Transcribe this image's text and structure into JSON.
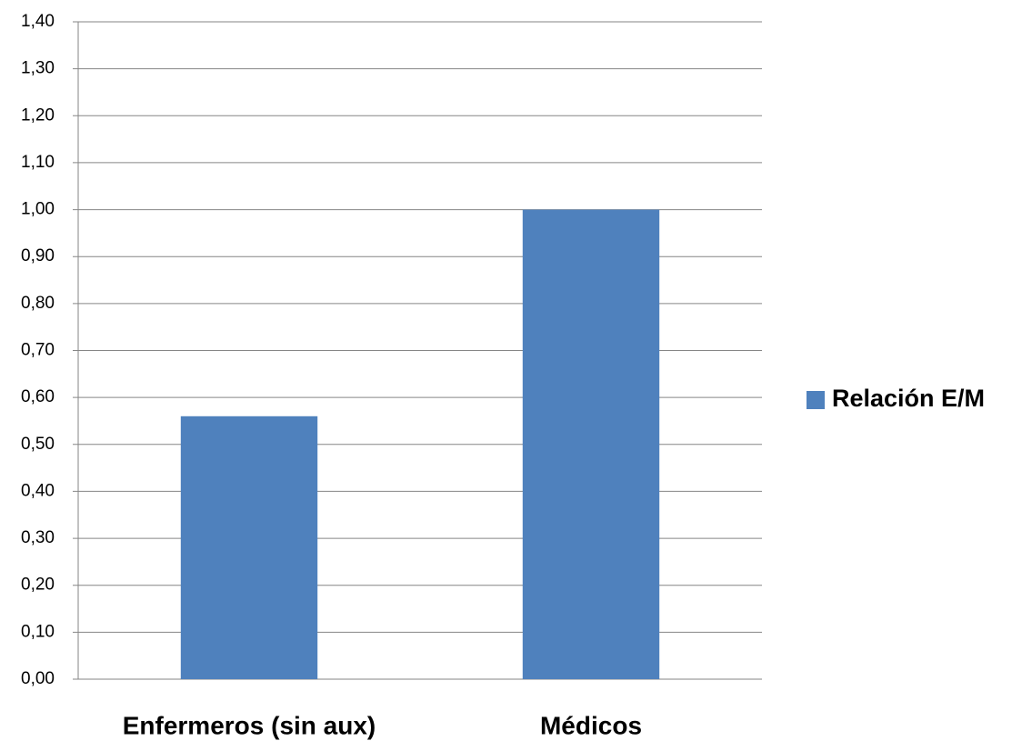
{
  "chart_data": {
    "type": "bar",
    "categories": [
      "Enfermeros (sin aux)",
      "Médicos"
    ],
    "series": [
      {
        "name": "Relación E/M",
        "color": "#4f81bd",
        "values": [
          0.56,
          1.0
        ]
      }
    ],
    "ylim": [
      0,
      1.4
    ],
    "yticks": [
      {
        "value": 0,
        "label": "0,00"
      },
      {
        "value": 0.1,
        "label": "0,10"
      },
      {
        "value": 0.2,
        "label": "0,20"
      },
      {
        "value": 0.3,
        "label": "0,30"
      },
      {
        "value": 0.4,
        "label": "0,40"
      },
      {
        "value": 0.5,
        "label": "0,50"
      },
      {
        "value": 0.6,
        "label": "0,60"
      },
      {
        "value": 0.7,
        "label": "0,70"
      },
      {
        "value": 0.8,
        "label": "0,80"
      },
      {
        "value": 0.9,
        "label": "0,90"
      },
      {
        "value": 1.0,
        "label": "1,00"
      },
      {
        "value": 1.1,
        "label": "1,10"
      },
      {
        "value": 1.2,
        "label": "1,20"
      },
      {
        "value": 1.3,
        "label": "1,30"
      },
      {
        "value": 1.4,
        "label": "1,40"
      }
    ],
    "grid": true,
    "legend": "right"
  }
}
